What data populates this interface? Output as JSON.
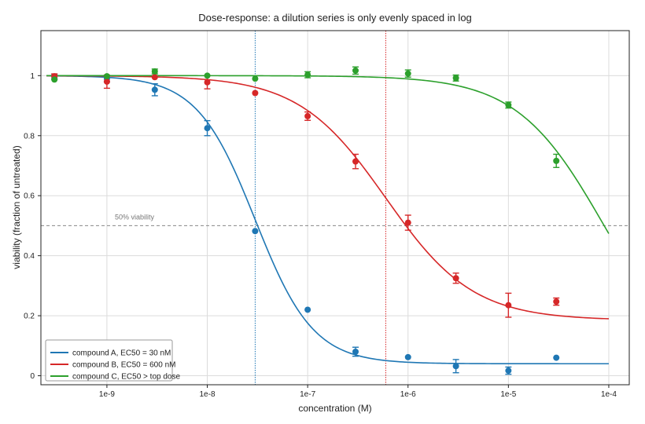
{
  "chart_data": {
    "type": "line",
    "title": "Dose-response: a dilution series is only evenly spaced in log",
    "xlabel": "concentration (M)",
    "ylabel": "viability (fraction of untreated)",
    "x_scale": "log",
    "xlim": [
      2.2e-10,
      0.00016
    ],
    "ylim": [
      -0.03,
      1.15
    ],
    "x_ticks": [
      1e-09,
      1e-08,
      1e-07,
      1e-06,
      1e-05,
      0.0001
    ],
    "x_tick_labels": [
      "1e-9",
      "1e-8",
      "1e-7",
      "1e-6",
      "1e-5",
      "1e-4"
    ],
    "y_ticks": [
      0,
      0.2,
      0.4,
      0.6,
      0.8,
      1
    ],
    "y_tick_labels": [
      "0",
      "0.2",
      "0.4",
      "0.6",
      "0.8",
      "1"
    ],
    "grid": true,
    "legend_position": "bottom-left",
    "reference_line": {
      "y": 0.5,
      "label": "50% viability",
      "color": "#888888"
    },
    "series": [
      {
        "name": "compound A, EC50 = 30 nM",
        "color": "#1f77b4",
        "ec50_marker": 3e-08,
        "fit": {
          "top": 1.0,
          "bottom": 0.04,
          "ec50": 3e-08,
          "hill": 1.5
        },
        "points": [
          {
            "x": 3e-10,
            "y": 0.995,
            "err": 0.008
          },
          {
            "x": 1e-09,
            "y": 0.99,
            "err": 0.01
          },
          {
            "x": 3e-09,
            "y": 0.953,
            "err": 0.02
          },
          {
            "x": 1e-08,
            "y": 0.825,
            "err": 0.025
          },
          {
            "x": 3e-08,
            "y": 0.482,
            "err": 0
          },
          {
            "x": 1e-07,
            "y": 0.22,
            "err": 0
          },
          {
            "x": 3e-07,
            "y": 0.08,
            "err": 0.015
          },
          {
            "x": 1e-06,
            "y": 0.062,
            "err": 0
          },
          {
            "x": 3e-06,
            "y": 0.032,
            "err": 0.022
          },
          {
            "x": 1e-05,
            "y": 0.017,
            "err": 0.012
          },
          {
            "x": 3e-05,
            "y": 0.06,
            "err": 0
          }
        ]
      },
      {
        "name": "compound B, EC50 = 600 nM",
        "color": "#d62728",
        "ec50_marker": 6e-07,
        "fit": {
          "top": 1.0,
          "bottom": 0.185,
          "ec50": 6e-07,
          "hill": 1.0
        },
        "points": [
          {
            "x": 3e-10,
            "y": 0.998,
            "err": 0.008
          },
          {
            "x": 1e-09,
            "y": 0.98,
            "err": 0.022
          },
          {
            "x": 3e-09,
            "y": 0.995,
            "err": 0
          },
          {
            "x": 1e-08,
            "y": 0.978,
            "err": 0.022
          },
          {
            "x": 3e-08,
            "y": 0.942,
            "err": 0
          },
          {
            "x": 1e-07,
            "y": 0.865,
            "err": 0.014
          },
          {
            "x": 3e-07,
            "y": 0.714,
            "err": 0.024
          },
          {
            "x": 1e-06,
            "y": 0.51,
            "err": 0.025
          },
          {
            "x": 3e-06,
            "y": 0.325,
            "err": 0.017
          },
          {
            "x": 1e-05,
            "y": 0.235,
            "err": 0.04
          },
          {
            "x": 3e-05,
            "y": 0.247,
            "err": 0.012
          }
        ]
      },
      {
        "name": "compound C, EC50 > top dose",
        "color": "#2ca02c",
        "fit": {
          "top": 1.0,
          "bottom": 0.0,
          "ec50": 9e-05,
          "hill": 1.0
        },
        "points": [
          {
            "x": 3e-10,
            "y": 0.987,
            "err": 0
          },
          {
            "x": 1e-09,
            "y": 0.998,
            "err": 0
          },
          {
            "x": 3e-09,
            "y": 1.014,
            "err": 0.008
          },
          {
            "x": 1e-08,
            "y": 1.0,
            "err": 0
          },
          {
            "x": 3e-08,
            "y": 0.99,
            "err": 0
          },
          {
            "x": 1e-07,
            "y": 1.003,
            "err": 0.01
          },
          {
            "x": 3e-07,
            "y": 1.017,
            "err": 0.012
          },
          {
            "x": 1e-06,
            "y": 1.007,
            "err": 0.012
          },
          {
            "x": 3e-06,
            "y": 0.992,
            "err": 0.01
          },
          {
            "x": 1e-05,
            "y": 0.902,
            "err": 0.01
          },
          {
            "x": 3e-05,
            "y": 0.716,
            "err": 0.022
          }
        ]
      }
    ]
  }
}
